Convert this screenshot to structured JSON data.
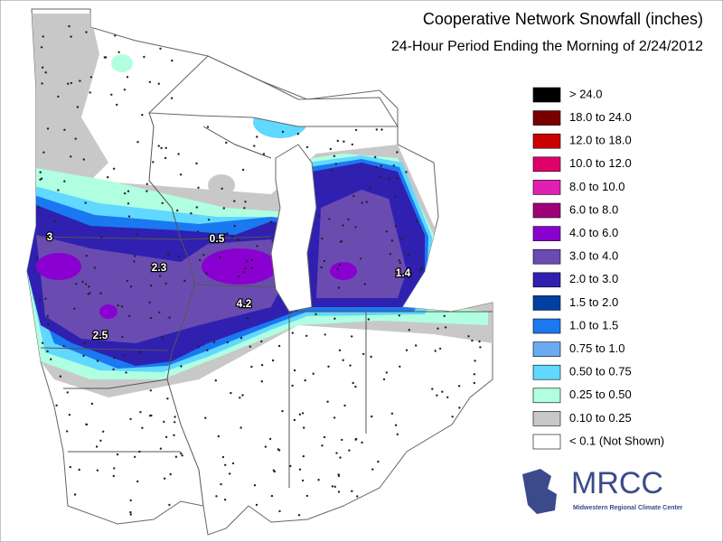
{
  "header": {
    "title": "Cooperative Network Snowfall (inches)",
    "subtitle": "24-Hour Period Ending the Morning of 2/24/2012"
  },
  "legend": [
    {
      "label": "> 24.0",
      "color": "#000000"
    },
    {
      "label": "18.0 to 24.0",
      "color": "#7a0000"
    },
    {
      "label": "12.0 to 18.0",
      "color": "#cc0000"
    },
    {
      "label": "10.0 to 12.0",
      "color": "#e0006a"
    },
    {
      "label": "8.0 to 10.0",
      "color": "#e020b0"
    },
    {
      "label": "6.0 to 8.0",
      "color": "#a0007a"
    },
    {
      "label": "4.0 to 6.0",
      "color": "#8a00d0"
    },
    {
      "label": "3.0 to 4.0",
      "color": "#6a4cb0"
    },
    {
      "label": "2.0 to 3.0",
      "color": "#3020b0"
    },
    {
      "label": "1.5 to 2.0",
      "color": "#0040a0"
    },
    {
      "label": "1.0 to 1.5",
      "color": "#1a78f0"
    },
    {
      "label": "0.75 to 1.0",
      "color": "#6aaaf0"
    },
    {
      "label": "0.50 to 0.75",
      "color": "#60d8ff"
    },
    {
      "label": "0.25 to 0.50",
      "color": "#b0ffe0"
    },
    {
      "label": "0.10 to 0.25",
      "color": "#c8c8c8"
    },
    {
      "label": "< 0.1 (Not Shown)",
      "color": "#ffffff"
    }
  ],
  "map_labels": [
    "3",
    "0.5",
    "2.3",
    "4.2",
    "2.5",
    "1.4"
  ],
  "logo": {
    "name": "MRCC",
    "full_name": "Midwestern Regional Climate Center"
  }
}
